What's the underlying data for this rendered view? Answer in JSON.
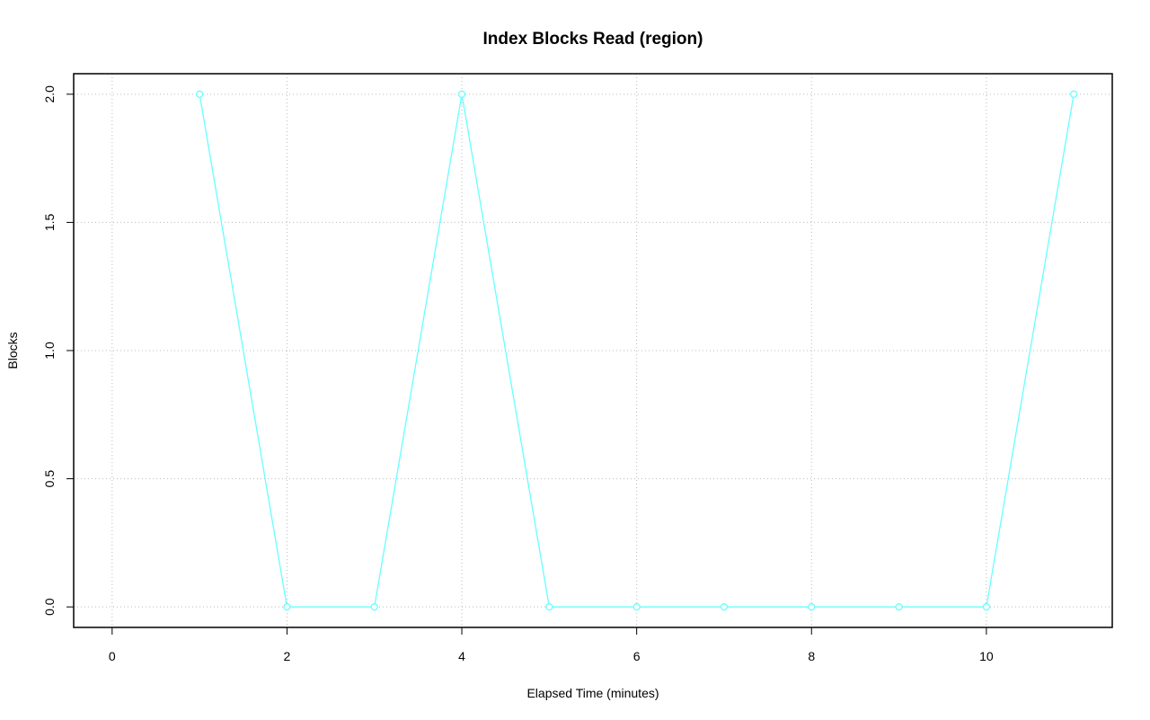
{
  "chart_data": {
    "type": "line",
    "title": "Index Blocks Read (region)",
    "xlabel": "Elapsed Time (minutes)",
    "ylabel": "Blocks",
    "x": [
      1,
      2,
      3,
      4,
      5,
      6,
      7,
      8,
      9,
      10,
      11
    ],
    "series": [
      {
        "name": "Blocks",
        "color": "#66ffff",
        "values": [
          2,
          0,
          0,
          2,
          0,
          0,
          0,
          0,
          0,
          0,
          2
        ]
      }
    ],
    "xlim": [
      -0.44,
      11.44
    ],
    "xticks": [
      0,
      2,
      4,
      6,
      8,
      10
    ],
    "ylim": [
      -0.08,
      2.08
    ],
    "yticks": [
      {
        "value": 0,
        "label": "0.0"
      },
      {
        "value": 0.5,
        "label": "0.5"
      },
      {
        "value": 1,
        "label": "1.0"
      },
      {
        "value": 1.5,
        "label": "1.5"
      },
      {
        "value": 2,
        "label": "2.0"
      }
    ],
    "grid": true
  }
}
